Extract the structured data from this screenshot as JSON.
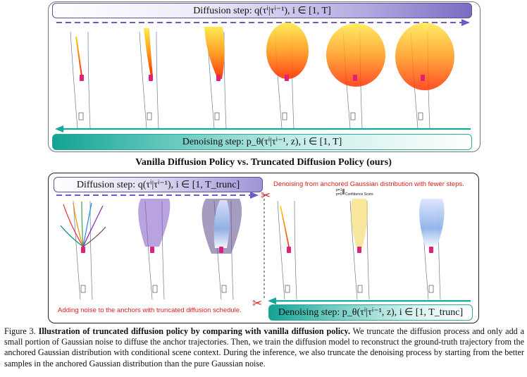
{
  "banners": {
    "diffusion_top": "Diffusion step: q(τⁱ|τⁱ⁻¹), i ∈ [1, T]",
    "denoising_top": "Denoising step: p_θ(τⁱ|τⁱ⁻¹, z), i ∈ [1, T]",
    "diffusion_bottom": "Diffusion step: q(τⁱ|τⁱ⁻¹), i ∈ [1, T_trunc]",
    "denoising_bottom": "Denoising step: p_θ(τⁱ|τⁱ⁻¹, z), i ∈ [1, T_trunc]"
  },
  "mid_title": "Vanilla Diffusion Policy vs. Truncated Diffusion Policy (ours)",
  "annotations": {
    "denoise_note": "Denoising from anchored Gaussian distribution with fewer steps.",
    "noise_note": "Adding noise to the anchors with truncated diffusion schedule.",
    "confidence_label": "Confidence Score",
    "p_hi": "p=1",
    "p_lo": "p=0"
  },
  "caption": {
    "label": "Figure 3.",
    "bold": "Illustration of truncated diffusion policy by comparing with vanilla diffusion policy.",
    "text": "We truncate the diffusion process and only add a small portion of Gaussian noise to diffuse the anchor trajectories. Then, we train the diffusion model to reconstruct the ground-truth trajectory from the anchored Gaussian distribution with conditional scene context. During the inference, we also truncate the denoising process by starting from the better samples in the anchored Gaussian distribution than the pure Gaussian noise."
  },
  "colors": {
    "diffusion_purple": "#6a5acd",
    "denoise_teal": "#14a898",
    "note_red": "#e02020",
    "ego_car": "#e0207a"
  },
  "icons": [
    "scissors-icon",
    "scissors-icon"
  ]
}
